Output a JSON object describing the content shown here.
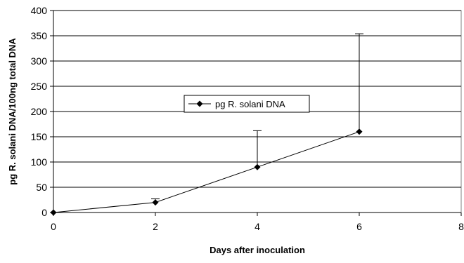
{
  "chart_data": {
    "type": "line",
    "xlabel": "Days after inoculation",
    "ylabel": "pg R. solani DNA/100ng total DNA",
    "xlim": [
      0,
      8
    ],
    "ylim": [
      0,
      400
    ],
    "xticks": [
      0,
      2,
      4,
      6,
      8
    ],
    "yticks": [
      0,
      50,
      100,
      150,
      200,
      250,
      300,
      350,
      400
    ],
    "grid": "horizontal major gridlines",
    "legend": "center",
    "series": [
      {
        "name": "pg R. solani DNA",
        "color": "#000000",
        "marker": "diamond",
        "x": [
          0,
          2,
          4,
          6
        ],
        "y": [
          0,
          20,
          90,
          160
        ],
        "error_upper": [
          0,
          7,
          72,
          194
        ]
      }
    ]
  }
}
